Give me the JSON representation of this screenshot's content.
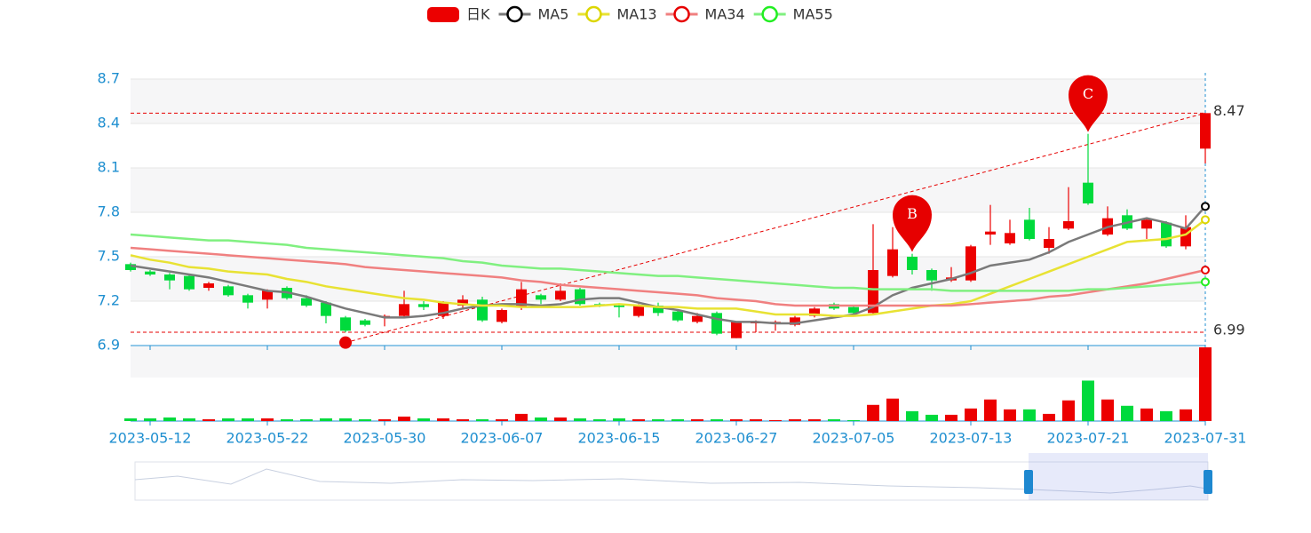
{
  "chart_data": {
    "type": "candlestick",
    "categories": [
      null,
      "2023-05-12",
      null,
      null,
      null,
      null,
      null,
      "2023-05-22",
      null,
      null,
      null,
      null,
      null,
      "2023-05-30",
      null,
      null,
      null,
      null,
      null,
      "2023-06-07",
      null,
      null,
      null,
      null,
      null,
      "2023-06-15",
      null,
      null,
      null,
      null,
      null,
      "2023-06-27",
      null,
      null,
      null,
      null,
      null,
      "2023-07-05",
      null,
      null,
      null,
      null,
      null,
      "2023-07-13",
      null,
      null,
      null,
      null,
      null,
      "2023-07-21",
      null,
      null,
      null,
      null,
      null,
      "2023-07-31"
    ],
    "ylim": [
      6.9,
      8.7
    ],
    "yticks": [
      6.9,
      7.2,
      7.5,
      7.8,
      8.1,
      8.4,
      8.7
    ],
    "series": [
      {
        "name": "日K",
        "color": "#ec0000",
        "down_color": "#00da3c",
        "open": [
          7.45,
          7.4,
          7.38,
          7.37,
          7.29,
          7.3,
          7.24,
          7.21,
          7.29,
          7.22,
          7.19,
          7.09,
          7.07,
          7.09,
          7.1,
          7.18,
          7.1,
          7.17,
          7.21,
          7.06,
          7.16,
          7.24,
          7.21,
          7.28,
          7.18,
          7.17,
          7.1,
          7.17,
          7.13,
          7.06,
          7.12,
          6.95,
          7.05,
          7.05,
          7.04,
          7.1,
          7.18,
          7.16,
          7.12,
          7.37,
          7.5,
          7.41,
          7.34,
          7.34,
          7.65,
          7.59,
          7.75,
          7.56,
          7.69,
          8.0,
          7.65,
          7.78,
          7.69,
          7.73,
          7.57,
          8.23
        ],
        "close": [
          7.41,
          7.38,
          7.34,
          7.28,
          7.32,
          7.24,
          7.19,
          7.27,
          7.22,
          7.17,
          7.1,
          7.0,
          7.04,
          7.1,
          7.18,
          7.16,
          7.19,
          7.21,
          7.07,
          7.14,
          7.28,
          7.21,
          7.27,
          7.18,
          7.17,
          7.16,
          7.17,
          7.12,
          7.07,
          7.1,
          6.98,
          7.06,
          7.06,
          7.06,
          7.09,
          7.15,
          7.15,
          7.12,
          7.41,
          7.55,
          7.41,
          7.34,
          7.36,
          7.57,
          7.67,
          7.66,
          7.62,
          7.62,
          7.74,
          7.86,
          7.76,
          7.69,
          7.75,
          7.57,
          7.7,
          8.47
        ],
        "low": [
          7.4,
          7.37,
          7.28,
          7.27,
          7.27,
          7.23,
          7.15,
          7.15,
          7.21,
          7.16,
          7.05,
          6.99,
          7.03,
          7.03,
          7.09,
          7.14,
          7.08,
          7.15,
          7.06,
          7.05,
          7.14,
          7.18,
          7.2,
          7.17,
          7.16,
          7.09,
          7.09,
          7.1,
          7.06,
          7.05,
          6.97,
          6.95,
          6.99,
          7.0,
          7.03,
          7.09,
          7.14,
          7.1,
          7.11,
          7.36,
          7.38,
          7.27,
          7.33,
          7.33,
          7.58,
          7.58,
          7.61,
          7.52,
          7.68,
          7.85,
          7.64,
          7.68,
          7.62,
          7.56,
          7.55,
          8.13
        ],
        "high": [
          7.46,
          7.41,
          7.39,
          7.38,
          7.33,
          7.31,
          7.25,
          7.28,
          7.3,
          7.24,
          7.2,
          7.1,
          7.08,
          7.11,
          7.27,
          7.2,
          7.2,
          7.24,
          7.23,
          7.15,
          7.33,
          7.25,
          7.32,
          7.29,
          7.19,
          7.18,
          7.18,
          7.19,
          7.14,
          7.12,
          7.13,
          7.06,
          7.07,
          7.07,
          7.1,
          7.16,
          7.19,
          7.17,
          7.72,
          7.7,
          7.52,
          7.42,
          7.43,
          7.58,
          7.85,
          7.75,
          7.83,
          7.7,
          7.97,
          8.33,
          7.84,
          7.82,
          7.76,
          7.74,
          7.78,
          8.47
        ]
      },
      {
        "name": "MA5",
        "color": "#7a7a7a",
        "symbol_color": "#000000",
        "values": [
          7.44,
          7.42,
          7.4,
          7.38,
          7.36,
          7.33,
          7.3,
          7.27,
          7.26,
          7.23,
          7.19,
          7.15,
          7.12,
          7.09,
          7.09,
          7.1,
          7.12,
          7.15,
          7.17,
          7.18,
          7.18,
          7.17,
          7.18,
          7.21,
          7.22,
          7.22,
          7.19,
          7.16,
          7.14,
          7.11,
          7.08,
          7.06,
          7.06,
          7.05,
          7.05,
          7.07,
          7.09,
          7.11,
          7.16,
          7.24,
          7.29,
          7.32,
          7.35,
          7.39,
          7.44,
          7.46,
          7.48,
          7.53,
          7.6,
          7.65,
          7.7,
          7.73,
          7.76,
          7.73,
          7.69,
          7.84
        ]
      },
      {
        "name": "MA13",
        "color": "#e8e233",
        "symbol_color": "#dcd600",
        "values": [
          7.51,
          7.48,
          7.46,
          7.43,
          7.42,
          7.4,
          7.39,
          7.38,
          7.35,
          7.33,
          7.3,
          7.28,
          7.26,
          7.24,
          7.22,
          7.21,
          7.19,
          7.18,
          7.17,
          7.17,
          7.16,
          7.16,
          7.16,
          7.16,
          7.17,
          7.18,
          7.17,
          7.16,
          7.16,
          7.15,
          7.15,
          7.15,
          7.13,
          7.11,
          7.11,
          7.11,
          7.1,
          7.1,
          7.11,
          7.13,
          7.15,
          7.17,
          7.18,
          7.2,
          7.25,
          7.3,
          7.35,
          7.4,
          7.45,
          7.5,
          7.55,
          7.6,
          7.61,
          7.62,
          7.65,
          7.75
        ]
      },
      {
        "name": "MA34",
        "color": "#f08080",
        "symbol_color": "#e60000",
        "values": [
          7.56,
          7.55,
          7.54,
          7.53,
          7.52,
          7.51,
          7.5,
          7.49,
          7.48,
          7.47,
          7.46,
          7.45,
          7.43,
          7.42,
          7.41,
          7.4,
          7.39,
          7.38,
          7.37,
          7.36,
          7.34,
          7.33,
          7.31,
          7.3,
          7.29,
          7.28,
          7.27,
          7.26,
          7.25,
          7.24,
          7.22,
          7.21,
          7.2,
          7.18,
          7.17,
          7.17,
          7.17,
          7.17,
          7.17,
          7.17,
          7.17,
          7.17,
          7.17,
          7.18,
          7.19,
          7.2,
          7.21,
          7.23,
          7.24,
          7.26,
          7.28,
          7.3,
          7.32,
          7.35,
          7.38,
          7.41
        ]
      },
      {
        "name": "MA55",
        "color": "#80f080",
        "symbol_color": "#22ee22",
        "values": [
          7.65,
          7.64,
          7.63,
          7.62,
          7.61,
          7.61,
          7.6,
          7.59,
          7.58,
          7.56,
          7.55,
          7.54,
          7.53,
          7.52,
          7.51,
          7.5,
          7.49,
          7.47,
          7.46,
          7.44,
          7.43,
          7.42,
          7.42,
          7.41,
          7.4,
          7.39,
          7.38,
          7.37,
          7.37,
          7.36,
          7.35,
          7.34,
          7.33,
          7.32,
          7.31,
          7.3,
          7.29,
          7.29,
          7.28,
          7.28,
          7.28,
          7.28,
          7.27,
          7.27,
          7.27,
          7.27,
          7.27,
          7.27,
          7.27,
          7.28,
          7.28,
          7.29,
          7.3,
          7.31,
          7.32,
          7.33
        ]
      }
    ],
    "volume": [
      3,
      3,
      4,
      3,
      2,
      3,
      3,
      3,
      2,
      2,
      3,
      3,
      2,
      2,
      5,
      3,
      3,
      2,
      2,
      2,
      8,
      4,
      4,
      3,
      2,
      3,
      2,
      2,
      2,
      2,
      2,
      2,
      2,
      1,
      2,
      2,
      2,
      1,
      18,
      25,
      11,
      7,
      7,
      14,
      24,
      13,
      13,
      8,
      23,
      45,
      24,
      17,
      14,
      11,
      13,
      82
    ],
    "marklines": [
      8.47,
      6.99
    ],
    "trend_line": {
      "start_index": 11,
      "start_value": 6.92,
      "end_index": 55,
      "end_value": 8.47
    },
    "markers": [
      {
        "label": "B",
        "index": 40
      },
      {
        "label": "C",
        "index": 49
      }
    ]
  }
}
